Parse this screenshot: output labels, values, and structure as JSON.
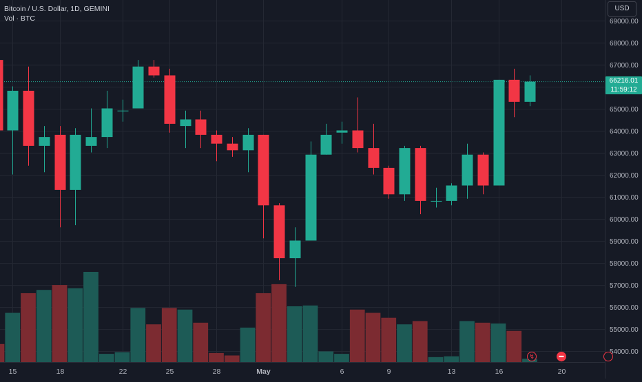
{
  "legend": {
    "title": "Bitcoin / U.S. Dollar, 1D, GEMINI",
    "volume_label": "Vol · BTC"
  },
  "currency_button": "USD",
  "last_price": {
    "value": "66216.01",
    "countdown": "11:59:12"
  },
  "colors": {
    "background": "#161a25",
    "grid": "#242833",
    "up": "#22ab94",
    "down": "#f23645",
    "up_volume": "#1d5b56",
    "down_volume": "#7c2b31",
    "text": "#d1d4dc"
  },
  "event_markers": [
    "dividend-icon",
    "earnings-icon",
    "event-icon"
  ],
  "chart_data": {
    "type": "candlestick",
    "title": "Bitcoin / U.S. Dollar, 1D, GEMINI",
    "ylim": [
      53500,
      69300
    ],
    "y_ticks": [
      "69000.00",
      "68000.00",
      "67000.00",
      "66000.00",
      "65000.00",
      "64000.00",
      "63000.00",
      "62000.00",
      "61000.00",
      "60000.00",
      "59000.00",
      "58000.00",
      "57000.00",
      "56000.00",
      "55000.00",
      "54000.00"
    ],
    "x_ticks": [
      "15",
      "18",
      "22",
      "25",
      "28",
      "May",
      "6",
      "9",
      "13",
      "16",
      "20"
    ],
    "x_tick_index": [
      1,
      4,
      8,
      11,
      14,
      17,
      22,
      25,
      29,
      32,
      36
    ],
    "last_price": 66216.01,
    "volume_ylim": [
      0,
      500
    ],
    "candles": [
      {
        "o": 67200,
        "h": 67600,
        "l": 64000,
        "c": 64000,
        "v": 110
      },
      {
        "o": 64000,
        "h": 66000,
        "l": 62000,
        "c": 65800,
        "v": 300
      },
      {
        "o": 65800,
        "h": 66900,
        "l": 62400,
        "c": 63300,
        "v": 420
      },
      {
        "o": 63300,
        "h": 64200,
        "l": 62100,
        "c": 63700,
        "v": 440
      },
      {
        "o": 63800,
        "h": 64200,
        "l": 59600,
        "c": 61300,
        "v": 470
      },
      {
        "o": 61300,
        "h": 64100,
        "l": 59700,
        "c": 63800,
        "v": 450
      },
      {
        "o": 63300,
        "h": 65000,
        "l": 63000,
        "c": 63700,
        "v": 550
      },
      {
        "o": 63700,
        "h": 65800,
        "l": 63200,
        "c": 65000,
        "v": 50
      },
      {
        "o": 64900,
        "h": 65400,
        "l": 64400,
        "c": 64900,
        "v": 60
      },
      {
        "o": 65000,
        "h": 67200,
        "l": 65000,
        "c": 66900,
        "v": 330
      },
      {
        "o": 66900,
        "h": 67200,
        "l": 66400,
        "c": 66500,
        "v": 230
      },
      {
        "o": 66500,
        "h": 66800,
        "l": 63900,
        "c": 64300,
        "v": 330
      },
      {
        "o": 64200,
        "h": 64900,
        "l": 63200,
        "c": 64500,
        "v": 320
      },
      {
        "o": 64500,
        "h": 64900,
        "l": 63200,
        "c": 63800,
        "v": 240
      },
      {
        "o": 63800,
        "h": 64000,
        "l": 62600,
        "c": 63400,
        "v": 55
      },
      {
        "o": 63400,
        "h": 63700,
        "l": 62800,
        "c": 63100,
        "v": 40
      },
      {
        "o": 63100,
        "h": 64100,
        "l": 62100,
        "c": 63800,
        "v": 210
      },
      {
        "o": 63800,
        "h": 63800,
        "l": 59100,
        "c": 60600,
        "v": 420
      },
      {
        "o": 60600,
        "h": 60700,
        "l": 57200,
        "c": 58200,
        "v": 475
      },
      {
        "o": 58200,
        "h": 59600,
        "l": 56900,
        "c": 59000,
        "v": 340
      },
      {
        "o": 59000,
        "h": 63500,
        "l": 59000,
        "c": 62900,
        "v": 345
      },
      {
        "o": 62900,
        "h": 64300,
        "l": 62900,
        "c": 63800,
        "v": 65
      },
      {
        "o": 63900,
        "h": 64400,
        "l": 63400,
        "c": 64000,
        "v": 50
      },
      {
        "o": 64000,
        "h": 65500,
        "l": 63000,
        "c": 63200,
        "v": 320
      },
      {
        "o": 63200,
        "h": 64300,
        "l": 62000,
        "c": 62300,
        "v": 300
      },
      {
        "o": 62300,
        "h": 62400,
        "l": 60900,
        "c": 61100,
        "v": 270
      },
      {
        "o": 61100,
        "h": 63300,
        "l": 60800,
        "c": 63200,
        "v": 230
      },
      {
        "o": 63200,
        "h": 63300,
        "l": 60200,
        "c": 60800,
        "v": 250
      },
      {
        "o": 60800,
        "h": 61400,
        "l": 60500,
        "c": 60800,
        "v": 30
      },
      {
        "o": 60800,
        "h": 61600,
        "l": 60600,
        "c": 61500,
        "v": 35
      },
      {
        "o": 61500,
        "h": 63400,
        "l": 60900,
        "c": 62900,
        "v": 250
      },
      {
        "o": 62900,
        "h": 63000,
        "l": 61100,
        "c": 61500,
        "v": 240
      },
      {
        "o": 61500,
        "h": 66300,
        "l": 61500,
        "c": 66300,
        "v": 235
      },
      {
        "o": 66300,
        "h": 66800,
        "l": 64600,
        "c": 65300,
        "v": 190
      },
      {
        "o": 65300,
        "h": 66500,
        "l": 65100,
        "c": 66216.01,
        "v": 20
      }
    ]
  }
}
